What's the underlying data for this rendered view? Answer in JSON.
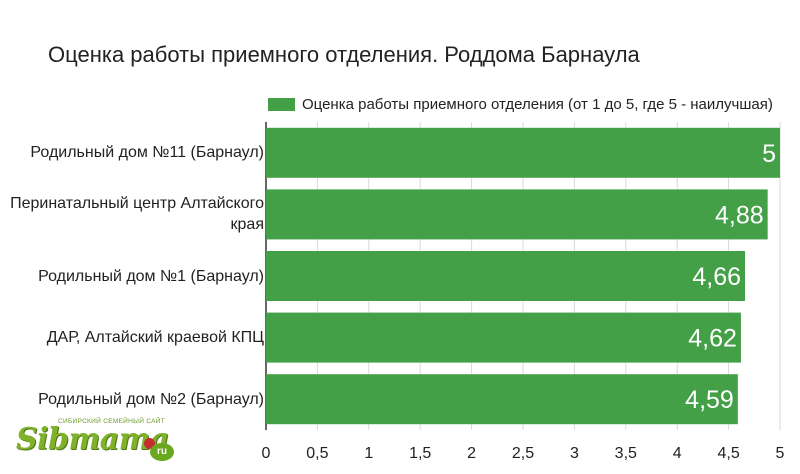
{
  "chart_data": {
    "type": "bar",
    "orientation": "horizontal",
    "title": "Оценка работы приемного отделения. Роддома Барнаула",
    "categories": [
      "Родильный дом №11 (Барнаул)",
      "Перинатальный центр Алтайского края",
      "Родильный дом №1 (Барнаул)",
      "ДАР, Алтайский краевой КПЦ",
      "Родильный дом №2 (Барнаул)"
    ],
    "series": [
      {
        "name": "Оценка работы приемного отделения (от 1 до 5, где 5 - наилучшая)",
        "values": [
          5,
          4.88,
          4.66,
          4.62,
          4.59
        ],
        "data_labels": [
          "5",
          "4,88",
          "4,66",
          "4,62",
          "4,59"
        ],
        "color": "#43a047"
      }
    ],
    "xlim": [
      0,
      5
    ],
    "xticks": [
      0,
      0.5,
      1,
      1.5,
      2,
      2.5,
      3,
      3.5,
      4,
      4.5,
      5
    ],
    "xtick_labels": [
      "0",
      "0,5",
      "1",
      "1,5",
      "2",
      "2,5",
      "3",
      "3,5",
      "4",
      "4,5",
      "5"
    ],
    "grid": true,
    "legend": "top-right"
  },
  "logo": {
    "word": "Sibmama",
    "tagline": "СИБИРСКИЙ СЕМЕЙНЫЙ САЙТ",
    "domain_suffix": "ru"
  }
}
